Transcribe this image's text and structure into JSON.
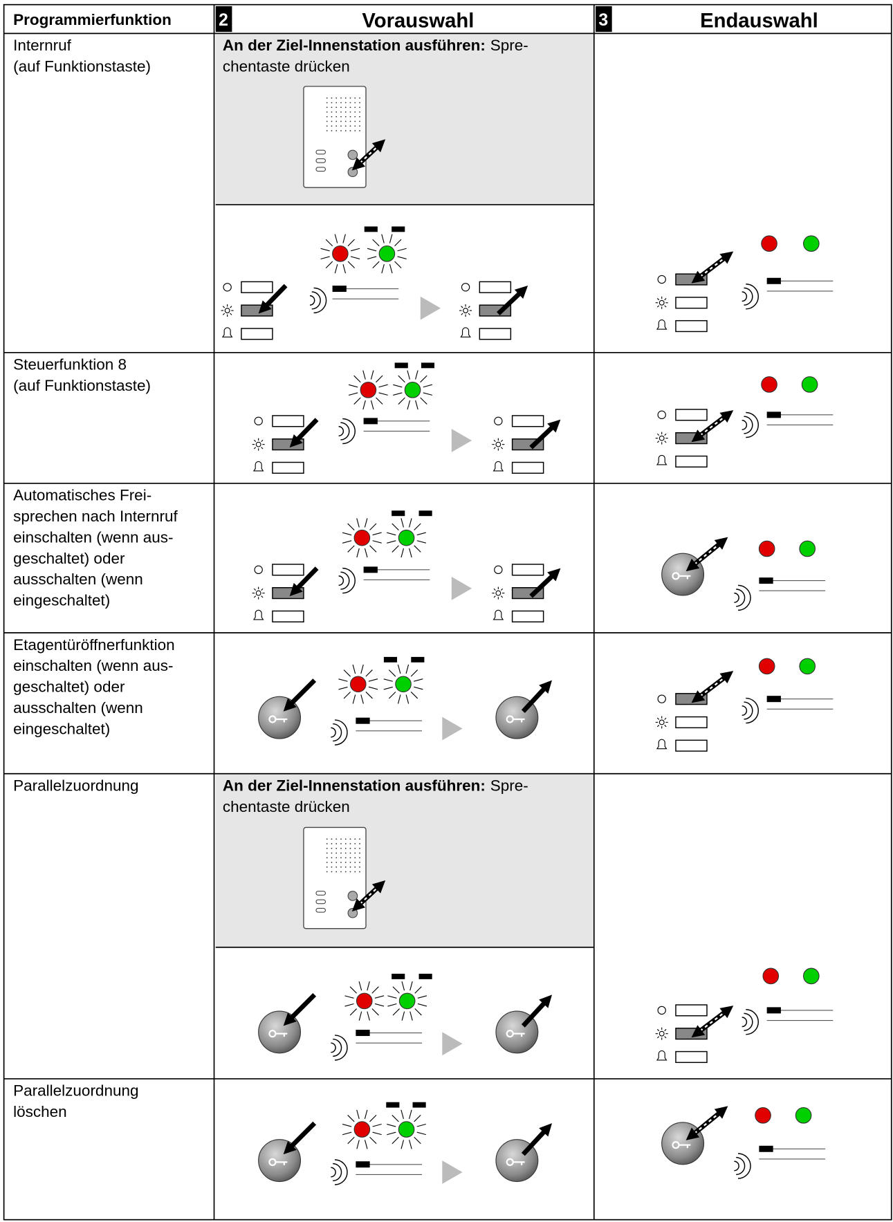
{
  "header": {
    "function": "Programmierfunktion",
    "step_preselection": "2",
    "preselection": "Vorauswahl",
    "step_final": "3",
    "final": "Endauswahl"
  },
  "rows": [
    {
      "function": [
        "Internruf",
        "(auf Funktionstaste)"
      ],
      "instruction": {
        "bold": "An der Ziel-Innenstation ausführen:",
        "text": [
          "Spre-",
          "chentaste drücken"
        ]
      }
    },
    {
      "function": [
        "Steuerfunktion 8",
        "(auf Funktionstaste)"
      ]
    },
    {
      "function": [
        "Automatisches Frei-",
        "sprechen nach Internruf",
        "einschalten (wenn aus-",
        "geschaltet) oder",
        "ausschalten (wenn",
        "eingeschaltet)"
      ]
    },
    {
      "function": [
        "Etagentüröffnerfunktion",
        "einschalten (wenn aus-",
        "geschaltet) oder",
        "ausschalten (wenn",
        "eingeschaltet)"
      ]
    },
    {
      "function": [
        "Parallelzuordnung"
      ],
      "instruction": {
        "bold": "An der Ziel-Innenstation ausführen:",
        "text": [
          "Spre-",
          "chentaste drücken"
        ]
      }
    },
    {
      "function": [
        "Parallelzuordnung",
        "löschen"
      ]
    }
  ]
}
